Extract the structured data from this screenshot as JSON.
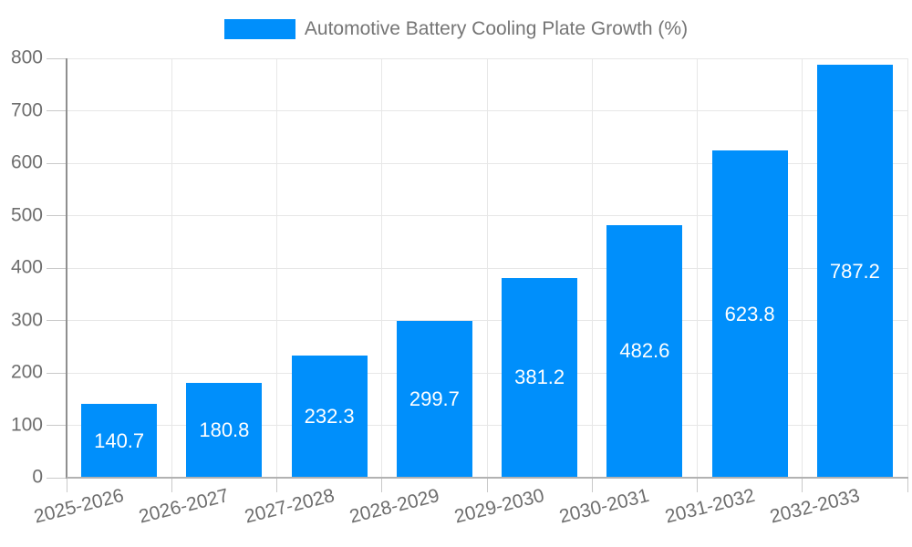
{
  "legend": {
    "label": "Automotive Battery Cooling Plate Growth (%)",
    "swatch_color": "#008FFB"
  },
  "chart_data": {
    "type": "bar",
    "title": "Automotive Battery Cooling Plate Growth (%)",
    "categories": [
      "2025-2026",
      "2026-2027",
      "2027-2028",
      "2028-2029",
      "2029-2030",
      "2030-2031",
      "2031-2032",
      "2032-2033"
    ],
    "series": [
      {
        "name": "Automotive Battery Cooling Plate Growth (%)",
        "values": [
          140.7,
          180.8,
          232.3,
          299.7,
          381.2,
          482.6,
          623.8,
          787.2
        ]
      }
    ],
    "data_labels": [
      "140.7",
      "180.8",
      "232.3",
      "299.7",
      "381.2",
      "482.6",
      "623.8",
      "787.2"
    ],
    "xlabel": "",
    "ylabel": "",
    "ylim": [
      0,
      800
    ],
    "yticks": [
      0,
      100,
      200,
      300,
      400,
      500,
      600,
      700,
      800
    ],
    "grid": true,
    "legend_position": "top",
    "x_label_rotation_deg": -14,
    "bar_color": "#008FFB",
    "value_label_color": "#FFFFFF",
    "axis_text_color": "#6E6E6E",
    "grid_color": "#E7E7E7"
  }
}
